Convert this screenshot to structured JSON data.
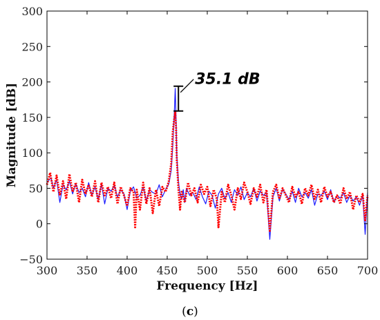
{
  "chart_data": {
    "type": "line",
    "title": "",
    "xlabel": "Frequency [Hz]",
    "ylabel": "Magnitude [dB]",
    "xlim": [
      300,
      700
    ],
    "ylim": [
      -50,
      300
    ],
    "xticks": [
      300,
      350,
      400,
      450,
      500,
      550,
      600,
      650,
      700
    ],
    "yticks": [
      -50,
      0,
      50,
      100,
      150,
      200,
      250,
      300
    ],
    "grid": false,
    "legend": "none",
    "annotation": {
      "text": "35.1 dB",
      "x": 464,
      "y_top": 194,
      "y_bottom": 159
    },
    "panel_label": {
      "open": "(",
      "letter": "c",
      "close": ")"
    },
    "series": [
      {
        "color": "#1a1aff",
        "style": "solid",
        "x": [
          300,
          305,
          308,
          312,
          316,
          320,
          324,
          328,
          332,
          336,
          340,
          344,
          348,
          352,
          356,
          360,
          364,
          368,
          372,
          376,
          380,
          384,
          388,
          392,
          396,
          400,
          404,
          408,
          412,
          416,
          420,
          424,
          428,
          432,
          436,
          440,
          444,
          448,
          452,
          455,
          457,
          459,
          460,
          461,
          462,
          464,
          466,
          468,
          470,
          472,
          474,
          478,
          482,
          486,
          490,
          494,
          498,
          502,
          506,
          510,
          514,
          518,
          522,
          526,
          530,
          534,
          538,
          542,
          546,
          550,
          554,
          558,
          562,
          566,
          570,
          574,
          578,
          582,
          586,
          590,
          594,
          598,
          602,
          606,
          610,
          614,
          618,
          622,
          626,
          630,
          634,
          638,
          642,
          646,
          650,
          654,
          658,
          662,
          666,
          670,
          674,
          678,
          682,
          686,
          690,
          694,
          697,
          700
        ],
        "y": [
          58,
          65,
          50,
          62,
          30,
          55,
          48,
          60,
          42,
          56,
          44,
          50,
          38,
          58,
          40,
          52,
          34,
          56,
          28,
          50,
          46,
          54,
          38,
          48,
          42,
          20,
          46,
          52,
          36,
          40,
          52,
          32,
          48,
          44,
          42,
          55,
          38,
          48,
          56,
          75,
          110,
          160,
          191,
          150,
          95,
          60,
          42,
          35,
          48,
          30,
          50,
          40,
          44,
          34,
          52,
          38,
          28,
          46,
          40,
          22,
          42,
          50,
          35,
          44,
          30,
          48,
          40,
          52,
          34,
          44,
          38,
          50,
          32,
          46,
          40,
          44,
          -22,
          38,
          50,
          32,
          48,
          42,
          34,
          46,
          30,
          50,
          38,
          44,
          36,
          48,
          26,
          42,
          40,
          46,
          34,
          48,
          30,
          40,
          36,
          44,
          30,
          40,
          32,
          38,
          26,
          40,
          -15,
          44
        ]
      },
      {
        "color": "#ff0000",
        "style": "dotted",
        "x": [
          300,
          304,
          308,
          312,
          316,
          320,
          324,
          328,
          332,
          336,
          340,
          344,
          348,
          352,
          356,
          360,
          364,
          368,
          372,
          376,
          380,
          384,
          388,
          392,
          396,
          400,
          404,
          408,
          410,
          412,
          416,
          420,
          424,
          428,
          432,
          436,
          440,
          444,
          448,
          452,
          455,
          457,
          459,
          460,
          461,
          462,
          464,
          466,
          468,
          472,
          476,
          480,
          484,
          488,
          492,
          496,
          500,
          504,
          508,
          512,
          514,
          518,
          522,
          526,
          530,
          534,
          538,
          542,
          546,
          550,
          554,
          558,
          562,
          566,
          570,
          574,
          578,
          582,
          586,
          590,
          594,
          598,
          602,
          606,
          610,
          614,
          618,
          622,
          626,
          630,
          634,
          638,
          642,
          646,
          650,
          654,
          658,
          662,
          666,
          670,
          674,
          678,
          682,
          686,
          690,
          694,
          697,
          700
        ],
        "y": [
          55,
          72,
          45,
          68,
          40,
          60,
          35,
          70,
          45,
          58,
          30,
          62,
          42,
          55,
          38,
          60,
          30,
          58,
          40,
          52,
          36,
          58,
          28,
          52,
          40,
          25,
          50,
          45,
          -5,
          48,
          20,
          58,
          28,
          50,
          15,
          48,
          25,
          52,
          45,
          60,
          85,
          130,
          150,
          157,
          135,
          90,
          50,
          20,
          45,
          30,
          58,
          40,
          50,
          30,
          55,
          42,
          52,
          25,
          48,
          35,
          -5,
          45,
          30,
          55,
          40,
          20,
          50,
          35,
          58,
          45,
          28,
          50,
          38,
          55,
          30,
          48,
          -10,
          45,
          55,
          35,
          50,
          40,
          30,
          52,
          38,
          45,
          28,
          50,
          40,
          55,
          35,
          48,
          30,
          52,
          38,
          45,
          30,
          40,
          28,
          50,
          35,
          45,
          20,
          40,
          30,
          42,
          5,
          40
        ]
      }
    ]
  }
}
